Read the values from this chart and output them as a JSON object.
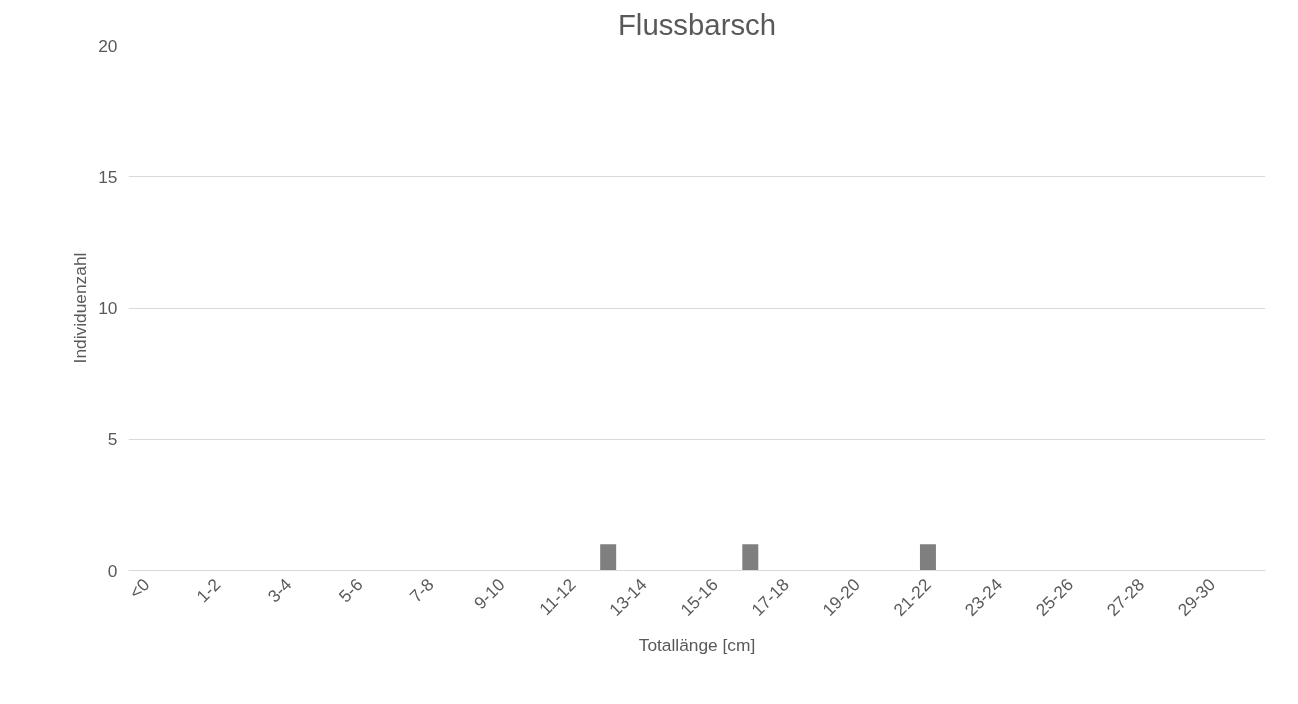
{
  "chart_data": {
    "type": "bar",
    "title": "Flussbarsch",
    "xlabel": "Totallänge [cm]",
    "ylabel": "Individuenzahl",
    "categories": [
      "<0",
      null,
      "1-2",
      null,
      "3-4",
      null,
      "5-6",
      null,
      "7-8",
      null,
      "9-10",
      null,
      "11-12",
      null,
      "13-14",
      null,
      "15-16",
      null,
      "17-18",
      null,
      "19-20",
      null,
      "21-22",
      null,
      "23-24",
      null,
      "25-26",
      null,
      "27-28",
      null,
      "29-30",
      null
    ],
    "values": [
      0,
      0,
      0,
      0,
      0,
      0,
      0,
      0,
      0,
      0,
      0,
      0,
      0,
      1,
      0,
      0,
      0,
      1,
      0,
      0,
      0,
      0,
      1,
      0,
      0,
      0,
      0,
      0,
      0,
      0,
      0,
      0
    ],
    "color": "#7f7f7f",
    "ylim": [
      0,
      20
    ],
    "yticks": [
      0,
      5,
      10,
      15,
      20
    ],
    "grid": "y"
  }
}
